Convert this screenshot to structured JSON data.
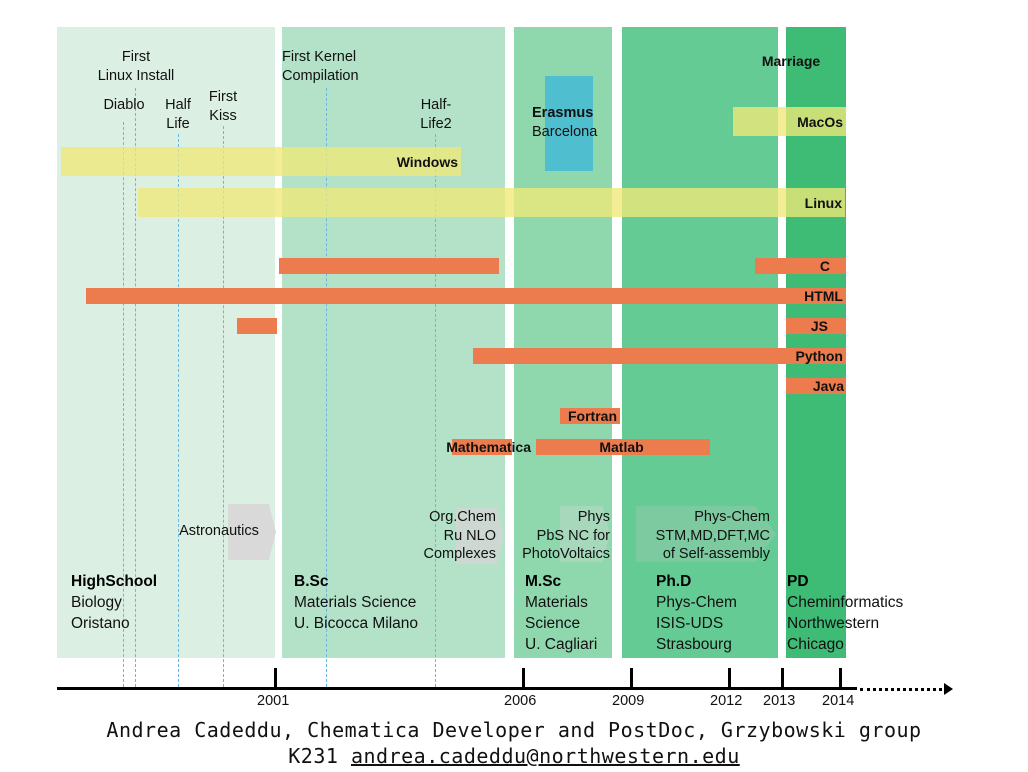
{
  "phases": [
    {
      "id": "highschool",
      "title": "HighSchool",
      "lines": [
        "Biology",
        "Oristano"
      ],
      "color": "#dcefe3"
    },
    {
      "id": "bsc",
      "title": "B.Sc",
      "lines": [
        "Materials Science",
        "U. Bicocca Milano"
      ],
      "color": "#b3e2c8"
    },
    {
      "id": "msc",
      "title": "M.Sc",
      "lines": [
        "Materials",
        "Science",
        "U. Cagliari"
      ],
      "color": "#8fd8ae"
    },
    {
      "id": "phd",
      "title": "Ph.D",
      "lines": [
        "Phys-Chem",
        "ISIS-UDS",
        "Strasbourg"
      ],
      "color": "#65cb94"
    },
    {
      "id": "pd",
      "title": "PD",
      "lines": [
        "Cheminformatics",
        "Northwestern",
        "Chicago"
      ],
      "color": "#3ebb74"
    }
  ],
  "events": [
    {
      "id": "first-linux-install",
      "text": [
        "First",
        "Linux Install"
      ]
    },
    {
      "id": "diablo",
      "text": [
        "Diablo"
      ]
    },
    {
      "id": "half-life",
      "text": [
        "Half",
        "Life"
      ]
    },
    {
      "id": "first-kiss",
      "text": [
        "First",
        "Kiss"
      ]
    },
    {
      "id": "first-kernel-compilation",
      "text": [
        "First Kernel",
        "Compilation"
      ]
    },
    {
      "id": "half-life2",
      "text": [
        "Half-",
        "Life2"
      ]
    }
  ],
  "marriage": "Marriage",
  "erasmus": {
    "title": "Erasmus",
    "place": "Barcelona",
    "color": "#4fbfd0"
  },
  "os_bars": [
    {
      "id": "windows",
      "label": "Windows"
    },
    {
      "id": "linux",
      "label": "Linux"
    },
    {
      "id": "macos",
      "label": "MacOs"
    }
  ],
  "lang_bars": [
    {
      "id": "c",
      "label": "C"
    },
    {
      "id": "c-early",
      "label": ""
    },
    {
      "id": "html",
      "label": "HTML"
    },
    {
      "id": "js",
      "label": "JS"
    },
    {
      "id": "js-early",
      "label": ""
    },
    {
      "id": "python",
      "label": "Python"
    },
    {
      "id": "java",
      "label": "Java"
    },
    {
      "id": "fortran",
      "label": "Fortran"
    },
    {
      "id": "matlab",
      "label": "Matlab"
    },
    {
      "id": "mathematica",
      "label": "Mathematica"
    }
  ],
  "projects": [
    {
      "id": "astronautics",
      "text": [
        "Astronautics"
      ]
    },
    {
      "id": "org-chem",
      "text": [
        "Org.Chem",
        "Ru NLO",
        "Complexes"
      ]
    },
    {
      "id": "phys-pbs",
      "text": [
        "Phys",
        "PbS NC for",
        "PhotoVoltaics"
      ]
    },
    {
      "id": "phys-chem",
      "text": [
        "Phys-Chem",
        "STM,MD,DFT,MC",
        "of Self-assembly"
      ]
    }
  ],
  "axis": {
    "ticks": [
      "2001",
      "2006",
      "2009",
      "2012",
      "2013",
      "2014"
    ]
  },
  "footer": {
    "line1": "Andrea Cadeddu, Chematica Developer and PostDoc, Grzybowski group",
    "room": "K231",
    "email": "andrea.cadeddu@northwestern.edu"
  },
  "colors": {
    "orange": "#ec7c4d",
    "yellow": "#f0e878",
    "dash": "#6ab7e0",
    "arrow": "#d9d9d9"
  }
}
